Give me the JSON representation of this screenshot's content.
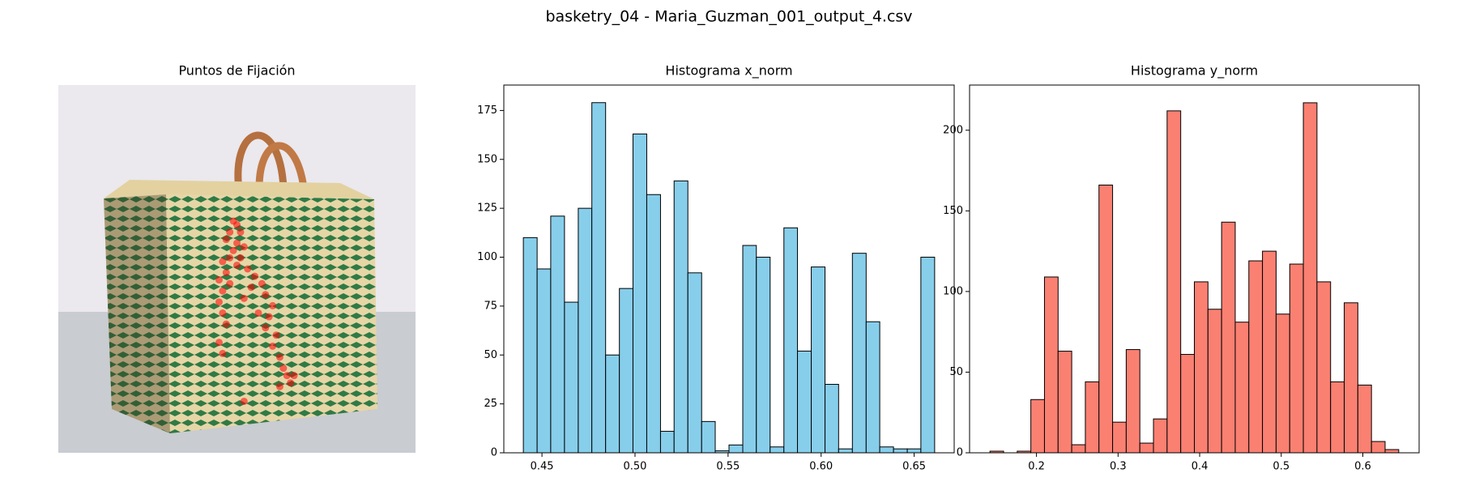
{
  "title": "basketry_04 - Maria_Guzman_001_output_4.csv",
  "chart_data": [
    {
      "type": "scatter",
      "title": "Puntos de Fijación",
      "color": "#ff0000",
      "x": [
        0.49,
        0.5,
        0.48,
        0.51,
        0.47,
        0.5,
        0.49,
        0.52,
        0.48,
        0.51,
        0.46,
        0.5,
        0.53,
        0.47,
        0.55,
        0.45,
        0.48,
        0.54,
        0.57,
        0.46,
        0.58,
        0.45,
        0.52,
        0.6,
        0.46,
        0.56,
        0.59,
        0.47,
        0.58,
        0.61,
        0.45,
        0.6,
        0.46,
        0.62,
        0.63,
        0.64,
        0.65,
        0.66,
        0.62,
        0.52
      ],
      "y": [
        0.37,
        0.38,
        0.4,
        0.4,
        0.42,
        0.43,
        0.45,
        0.44,
        0.47,
        0.47,
        0.48,
        0.49,
        0.5,
        0.51,
        0.52,
        0.53,
        0.54,
        0.55,
        0.54,
        0.56,
        0.57,
        0.59,
        0.58,
        0.6,
        0.62,
        0.62,
        0.63,
        0.65,
        0.66,
        0.68,
        0.7,
        0.71,
        0.73,
        0.74,
        0.77,
        0.79,
        0.81,
        0.79,
        0.82,
        0.86
      ],
      "xlim": [
        0,
        1
      ],
      "ylim": [
        1,
        0
      ]
    },
    {
      "type": "histogram",
      "title": "Histograma x_norm",
      "color": "#87ceeb",
      "bins": [
        0.44,
        0.4474,
        0.4547,
        0.4621,
        0.4695,
        0.4768,
        0.4842,
        0.4916,
        0.4989,
        0.5063,
        0.5137,
        0.521,
        0.5284,
        0.5358,
        0.5431,
        0.5505,
        0.5579,
        0.5652,
        0.5726,
        0.58,
        0.5873,
        0.5947,
        0.6021,
        0.6094,
        0.6168,
        0.6242,
        0.6315,
        0.6389,
        0.6463,
        0.6536,
        0.661
      ],
      "values": [
        110,
        94,
        121,
        77,
        125,
        179,
        50,
        84,
        163,
        132,
        11,
        139,
        92,
        16,
        1,
        4,
        106,
        100,
        3,
        115,
        52,
        95,
        35,
        2,
        102,
        67,
        3,
        2,
        2,
        100
      ],
      "xlim": [
        0.4295,
        0.6715
      ],
      "ylim": [
        0,
        188
      ],
      "xticks": [
        0.45,
        {
          "value": 0.5,
          "label": "0.50"
        },
        0.55,
        {
          "value": 0.6,
          "label": "0.60"
        },
        0.65
      ],
      "yticks": [
        0,
        25,
        50,
        75,
        100,
        125,
        150,
        175
      ]
    },
    {
      "type": "histogram",
      "title": "Histograma y_norm",
      "color": "#fa8072",
      "bins": [
        0.143,
        0.1597,
        0.1764,
        0.1931,
        0.2098,
        0.2265,
        0.2432,
        0.2599,
        0.2766,
        0.2933,
        0.31,
        0.3267,
        0.3434,
        0.3601,
        0.3768,
        0.3935,
        0.4102,
        0.4269,
        0.4436,
        0.4603,
        0.477,
        0.4937,
        0.5104,
        0.5271,
        0.5438,
        0.5605,
        0.5772,
        0.5939,
        0.6106,
        0.6273,
        0.644
      ],
      "values": [
        1,
        0,
        1,
        33,
        109,
        63,
        5,
        44,
        166,
        19,
        64,
        6,
        21,
        212,
        61,
        106,
        89,
        143,
        81,
        119,
        125,
        86,
        117,
        217,
        106,
        44,
        93,
        42,
        7,
        2
      ],
      "xlim": [
        0.118,
        0.669
      ],
      "ylim": [
        0,
        228
      ],
      "xticks": [
        0.2,
        0.3,
        0.4,
        0.5,
        0.6
      ],
      "yticks": [
        0,
        50,
        100,
        150,
        200
      ]
    }
  ]
}
